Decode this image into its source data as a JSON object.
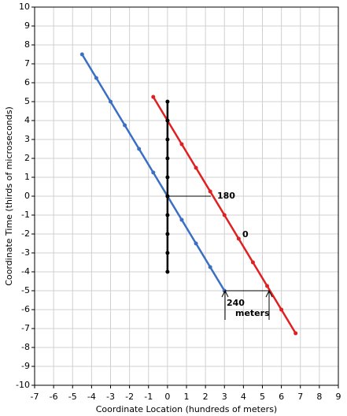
{
  "chart_data": {
    "type": "line",
    "x_label": "Coordinate Location (hundreds of meters)",
    "y_label": "Coordinate Time (thirds of microseconds)",
    "xlim": [
      -7,
      9
    ],
    "ylim": [
      -10,
      10
    ],
    "xticks": [
      -7,
      -6,
      -5,
      -4,
      -3,
      -2,
      -1,
      0,
      1,
      2,
      3,
      4,
      5,
      6,
      7,
      8,
      9
    ],
    "yticks": [
      -10,
      -9,
      -8,
      -7,
      -6,
      -5,
      -4,
      -3,
      -2,
      -1,
      0,
      1,
      2,
      3,
      4,
      5,
      6,
      7,
      8,
      9,
      10
    ],
    "grid": true,
    "series": [
      {
        "color": "#3a6fc4",
        "x": [
          -4.5,
          -3.75,
          -3,
          -2.25,
          -1.5,
          -0.75,
          0,
          0.75,
          1.5,
          2.25,
          3
        ],
        "values": [
          7.5,
          6.25,
          5,
          3.75,
          2.5,
          1.25,
          0,
          -1.25,
          -2.5,
          -3.75,
          -5
        ]
      },
      {
        "color": "#e02020",
        "x": [
          -0.75,
          0,
          0.75,
          1.5,
          2.25,
          3,
          3.75,
          4.5,
          5.25,
          6,
          6.75
        ],
        "values": [
          5.25,
          4,
          2.75,
          1.5,
          0.25,
          -1,
          -2.25,
          -3.5,
          -4.75,
          -6,
          -7.25
        ]
      },
      {
        "color": "#000000",
        "x": [
          0,
          0,
          0,
          0,
          0,
          0,
          0,
          0,
          0,
          0
        ],
        "values": [
          5,
          4,
          3,
          2,
          1,
          0,
          -1,
          -2,
          -3,
          -4
        ]
      }
    ],
    "annotations": [
      {
        "text": "180",
        "color": "#e02020"
      },
      {
        "text": "0",
        "color": "#e02020"
      },
      {
        "text": "240",
        "color": "#000000"
      },
      {
        "text": "meters",
        "color": "#000000"
      }
    ]
  }
}
